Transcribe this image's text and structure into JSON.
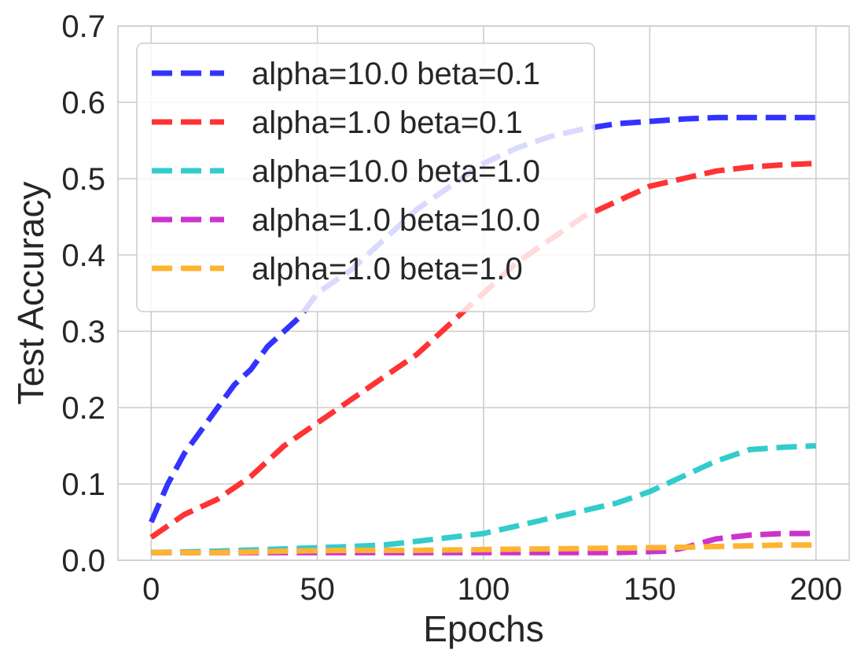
{
  "chart_data": {
    "type": "line",
    "title": "",
    "xlabel": "Epochs",
    "ylabel": "Test Accuracy",
    "xlim": [
      -10,
      210
    ],
    "ylim": [
      0,
      0.7
    ],
    "xticks": [
      0,
      50,
      100,
      150,
      200
    ],
    "xtick_labels": [
      "0",
      "50",
      "100",
      "150",
      "200"
    ],
    "yticks": [
      0,
      0.1,
      0.2,
      0.3,
      0.4,
      0.5,
      0.6,
      0.7
    ],
    "ytick_labels": [
      "0.0",
      "0.1",
      "0.2",
      "0.3",
      "0.4",
      "0.5",
      "0.6",
      "0.7"
    ],
    "grid": true,
    "legend_position": "upper-left",
    "series": [
      {
        "name": "alpha=10.0 beta=0.1",
        "color": "#3333ff",
        "x": [
          0,
          5,
          10,
          15,
          20,
          25,
          30,
          35,
          40,
          45,
          50,
          60,
          70,
          80,
          90,
          100,
          110,
          120,
          130,
          140,
          150,
          160,
          170,
          180,
          190,
          200
        ],
        "y": [
          0.05,
          0.1,
          0.14,
          0.17,
          0.2,
          0.23,
          0.25,
          0.28,
          0.3,
          0.32,
          0.35,
          0.38,
          0.42,
          0.46,
          0.49,
          0.52,
          0.54,
          0.555,
          0.565,
          0.572,
          0.575,
          0.578,
          0.58,
          0.58,
          0.58,
          0.58
        ]
      },
      {
        "name": "alpha=1.0 beta=0.1",
        "color": "#ff3333",
        "x": [
          0,
          10,
          20,
          30,
          40,
          50,
          60,
          70,
          80,
          90,
          100,
          110,
          120,
          130,
          140,
          150,
          160,
          170,
          180,
          190,
          200
        ],
        "y": [
          0.03,
          0.06,
          0.08,
          0.11,
          0.15,
          0.18,
          0.21,
          0.24,
          0.27,
          0.31,
          0.35,
          0.39,
          0.42,
          0.45,
          0.47,
          0.49,
          0.5,
          0.51,
          0.515,
          0.518,
          0.52
        ]
      },
      {
        "name": "alpha=10.0 beta=1.0",
        "color": "#33cccc",
        "x": [
          0,
          20,
          40,
          60,
          70,
          80,
          90,
          100,
          110,
          120,
          130,
          140,
          150,
          160,
          170,
          180,
          190,
          200
        ],
        "y": [
          0.01,
          0.012,
          0.015,
          0.018,
          0.02,
          0.025,
          0.03,
          0.035,
          0.045,
          0.055,
          0.065,
          0.075,
          0.09,
          0.11,
          0.13,
          0.145,
          0.148,
          0.15
        ]
      },
      {
        "name": "alpha=1.0 beta=10.0",
        "color": "#cc33cc",
        "x": [
          0,
          20,
          40,
          60,
          80,
          100,
          120,
          140,
          155,
          160,
          165,
          170,
          180,
          190,
          200
        ],
        "y": [
          0.01,
          0.01,
          0.01,
          0.01,
          0.01,
          0.01,
          0.01,
          0.01,
          0.012,
          0.016,
          0.022,
          0.028,
          0.033,
          0.035,
          0.035
        ]
      },
      {
        "name": "alpha=1.0 beta=1.0",
        "color": "#ffb333",
        "x": [
          0,
          20,
          40,
          60,
          80,
          100,
          120,
          140,
          160,
          170,
          180,
          190,
          200
        ],
        "y": [
          0.01,
          0.01,
          0.012,
          0.013,
          0.013,
          0.014,
          0.015,
          0.016,
          0.017,
          0.018,
          0.019,
          0.02,
          0.02
        ]
      }
    ]
  }
}
